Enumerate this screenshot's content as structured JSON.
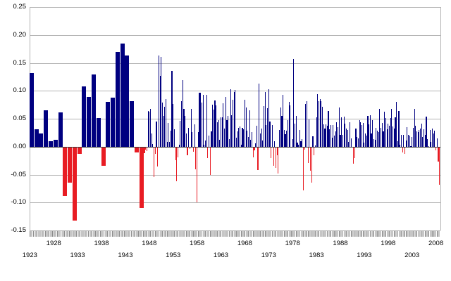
{
  "chart_data": {
    "type": "bar",
    "title": "",
    "grid": true,
    "legend": false,
    "plot_background": "#FFFFFF",
    "colors": {
      "positive_bar": "#000080",
      "negative_bar": "#E81C23",
      "gridline": "#B3B3B3",
      "zero_axis_line": "#3A3A3A",
      "tick_text": "#000000"
    },
    "y_axis": {
      "min": -0.15,
      "max": 0.25,
      "tick_step": 0.05,
      "tick_labels": [
        "0.25",
        "0.20",
        "0.15",
        "0.10",
        "0.05",
        "0.00",
        "-0.05",
        "-0.10",
        "-0.15"
      ]
    },
    "x_axis": {
      "upper_row_labels": [
        "1928",
        "1938",
        "1948",
        "1958",
        "1968",
        "1978",
        "1988",
        "1998",
        "2008"
      ],
      "lower_row_labels": [
        "1923",
        "1933",
        "1943",
        "1953",
        "1963",
        "1973",
        "1983",
        "1993",
        "2003"
      ],
      "minor_ticks": "one per quarter, 1923Q1 through 2008Q4"
    },
    "annual_series": {
      "period": "annual bars 1923-1946",
      "years": [
        1923,
        1924,
        1925,
        1926,
        1927,
        1928,
        1929,
        1930,
        1931,
        1932,
        1933,
        1934,
        1935,
        1936,
        1937,
        1938,
        1939,
        1940,
        1941,
        1942,
        1943,
        1944,
        1945,
        1946
      ],
      "values": [
        0.132,
        0.031,
        0.023,
        0.065,
        0.01,
        0.012,
        0.061,
        -0.088,
        -0.065,
        -0.132,
        -0.013,
        0.108,
        0.089,
        0.129,
        0.051,
        -0.034,
        0.08,
        0.088,
        0.17,
        0.185,
        0.163,
        0.082,
        -0.01,
        -0.11
      ]
    },
    "quarterly_series": {
      "period": "quarterly bars 1947Q1-2008Q4",
      "start_year": 1947,
      "values": [
        -0.012,
        -0.005,
        -0.008,
        0.064,
        0.062,
        0.068,
        0.023,
        0.005,
        -0.054,
        -0.013,
        0.045,
        -0.035,
        0.163,
        0.127,
        0.161,
        0.079,
        0.055,
        0.071,
        0.085,
        0.009,
        0.043,
        0.009,
        0.029,
        0.135,
        0.076,
        0.031,
        -0.024,
        -0.062,
        -0.019,
        0.004,
        0.046,
        0.081,
        0.119,
        0.067,
        0.055,
        0.024,
        -0.015,
        0.034,
        -0.004,
        0.068,
        0.026,
        -0.009,
        0.04,
        -0.041,
        -0.1,
        0.026,
        0.096,
        0.097,
        0.079,
        0.093,
        0.003,
        0.011,
        0.093,
        -0.021,
        0.02,
        -0.05,
        0.027,
        0.075,
        0.066,
        0.083,
        0.074,
        0.044,
        0.048,
        0.012,
        0.052,
        0.052,
        0.078,
        0.033,
        0.089,
        0.047,
        0.055,
        0.013,
        0.103,
        0.056,
        0.084,
        0.098,
        0.102,
        0.016,
        0.027,
        0.034,
        0.036,
        0.003,
        0.034,
        0.031,
        0.084,
        0.07,
        0.029,
        0.017,
        0.065,
        0.012,
        0.026,
        -0.019,
        -0.007,
        0.006,
        0.037,
        -0.042,
        0.113,
        0.023,
        0.032,
        0.011,
        0.073,
        0.098,
        0.039,
        0.069,
        0.103,
        0.045,
        -0.021,
        0.039,
        -0.034,
        0.01,
        -0.038,
        -0.016,
        -0.048,
        0.03,
        0.07,
        0.055,
        0.093,
        0.03,
        0.022,
        0.029,
        0.048,
        0.08,
        0.074,
        0.0,
        0.013,
        0.157,
        0.041,
        0.055,
        0.007,
        0.004,
        0.03,
        0.01,
        0.013,
        -0.078,
        -0.005,
        0.077,
        0.081,
        -0.029,
        0.049,
        -0.043,
        -0.064,
        0.018,
        -0.015,
        0.002,
        0.053,
        0.094,
        0.081,
        0.085,
        0.082,
        0.072,
        0.04,
        0.032,
        0.04,
        0.037,
        0.064,
        0.031,
        0.039,
        0.016,
        0.039,
        0.02,
        0.027,
        0.044,
        0.035,
        0.07,
        0.021,
        0.052,
        0.021,
        0.054,
        0.041,
        0.032,
        0.03,
        0.009,
        0.044,
        0.015,
        0.0,
        -0.03,
        -0.02,
        0.032,
        0.017,
        0.015,
        0.048,
        0.044,
        0.039,
        0.042,
        0.007,
        0.023,
        0.02,
        0.055,
        0.04,
        0.056,
        0.024,
        0.047,
        0.014,
        0.012,
        0.034,
        0.029,
        0.026,
        0.067,
        0.034,
        0.042,
        0.027,
        0.062,
        0.051,
        0.031,
        0.041,
        0.038,
        0.051,
        0.067,
        0.036,
        0.032,
        0.052,
        0.08,
        0.01,
        0.064,
        0.003,
        0.021,
        -0.011,
        0.021,
        -0.013,
        0.011,
        0.035,
        0.021,
        0.02,
        0.001,
        0.017,
        0.034,
        0.067,
        0.037,
        0.027,
        0.026,
        0.03,
        0.033,
        0.041,
        0.017,
        0.031,
        0.021,
        0.054,
        0.014,
        0.001,
        0.03,
        0.009,
        0.032,
        0.023,
        0.029,
        -0.007,
        0.015,
        -0.027,
        -0.068
      ]
    }
  }
}
